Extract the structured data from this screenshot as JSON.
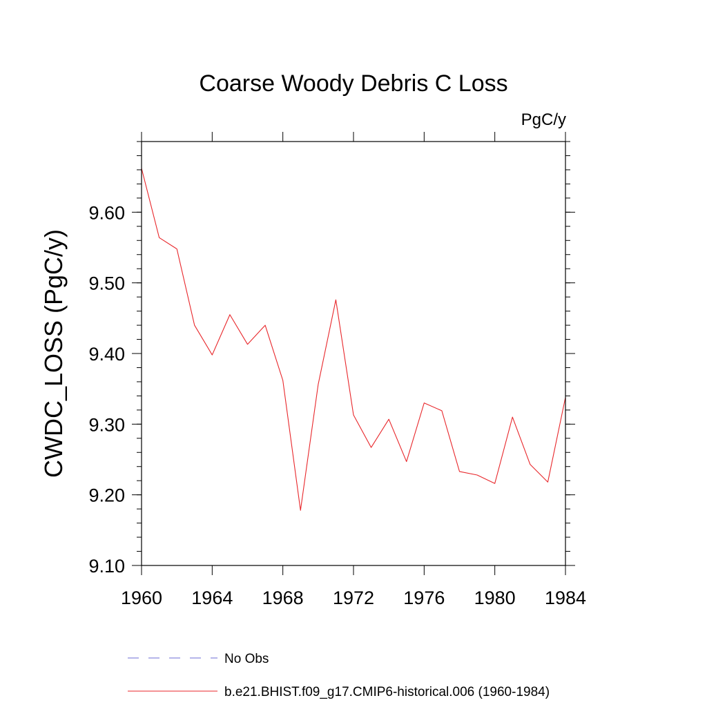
{
  "chart_data": {
    "type": "line",
    "title": "Coarse Woody Debris C Loss",
    "units": "PgC/y",
    "ylabel": "CWDC_LOSS  (PgC/y)",
    "xlabel": "",
    "xlim": [
      1960,
      1984
    ],
    "ylim": [
      9.1,
      9.7
    ],
    "x_ticks": [
      1960,
      1964,
      1968,
      1972,
      1976,
      1980,
      1984
    ],
    "x_tick_labels": [
      "1960",
      "1964",
      "1968",
      "1972",
      "1976",
      "1980",
      "1984"
    ],
    "y_ticks": [
      9.1,
      9.2,
      9.3,
      9.4,
      9.5,
      9.6
    ],
    "y_tick_labels": [
      "9.10",
      "9.20",
      "9.30",
      "9.40",
      "9.50",
      "9.60"
    ],
    "grid": false,
    "legend_placement": "bottom",
    "legend": [
      {
        "label": "No Obs",
        "color": "#6b6bd6",
        "style": "dashed"
      },
      {
        "label": "b.e21.BHIST.f09_g17.CMIP6-historical.006 (1960-1984)",
        "color": "#e8262a",
        "style": "solid"
      }
    ],
    "series": [
      {
        "name": "b.e21.BHIST.f09_g17.CMIP6-historical.006 (1960-1984)",
        "color": "#e8262a",
        "x": [
          1960,
          1961,
          1962,
          1963,
          1964,
          1965,
          1966,
          1967,
          1968,
          1969,
          1970,
          1971,
          1972,
          1973,
          1974,
          1975,
          1976,
          1977,
          1978,
          1979,
          1980,
          1981,
          1982,
          1983,
          1984
        ],
        "values": [
          9.662,
          9.564,
          9.548,
          9.44,
          9.398,
          9.455,
          9.413,
          9.44,
          9.362,
          9.178,
          9.356,
          9.476,
          9.313,
          9.267,
          9.307,
          9.247,
          9.33,
          9.319,
          9.233,
          9.228,
          9.216,
          9.31,
          9.243,
          9.218,
          9.338
        ]
      }
    ]
  }
}
